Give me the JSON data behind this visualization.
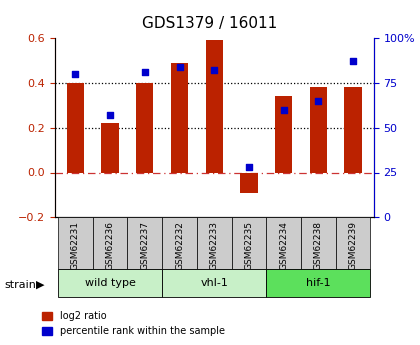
{
  "title": "GDS1379 / 16011",
  "samples": [
    "GSM62231",
    "GSM62236",
    "GSM62237",
    "GSM62232",
    "GSM62233",
    "GSM62235",
    "GSM62234",
    "GSM62238",
    "GSM62239"
  ],
  "log2_ratio": [
    0.4,
    0.22,
    0.4,
    0.49,
    0.59,
    -0.09,
    0.34,
    0.38,
    0.38
  ],
  "percentile_rank": [
    80,
    57,
    81,
    84,
    82,
    28,
    60,
    65,
    87
  ],
  "groups": [
    {
      "label": "wild type",
      "start": 0,
      "end": 3,
      "color": "#c8f0c8"
    },
    {
      "label": "vhl-1",
      "start": 3,
      "end": 6,
      "color": "#c8f0c8"
    },
    {
      "label": "hif-1",
      "start": 6,
      "end": 9,
      "color": "#5ce05c"
    }
  ],
  "bar_color": "#bb2200",
  "dot_color": "#0000cc",
  "ylim_left": [
    -0.2,
    0.6
  ],
  "ylim_right": [
    0,
    100
  ],
  "yticks_left": [
    -0.2,
    0.0,
    0.2,
    0.4,
    0.6
  ],
  "yticks_right": [
    0,
    25,
    50,
    75,
    100
  ],
  "yticklabels_right": [
    "0",
    "25",
    "50",
    "75",
    "100%"
  ],
  "hline_dotted": [
    0.2,
    0.4
  ],
  "hline_zero_color": "#cc3333",
  "label_bg_color": "#cccccc",
  "legend_items": [
    "log2 ratio",
    "percentile rank within the sample"
  ]
}
